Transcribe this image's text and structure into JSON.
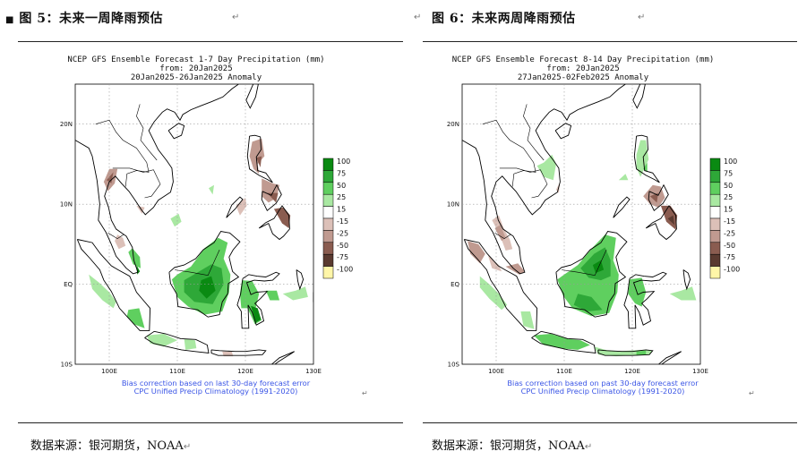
{
  "left": {
    "figure_title": "图 5：未来一周降雨预估",
    "source": "数据来源：银河期货，NOAA"
  },
  "right": {
    "figure_title": "图 6：未来两周降雨预估",
    "source": "数据来源：银河期货，NOAA"
  },
  "paragraph_mark": "↵",
  "bullet": "■",
  "colors": {
    "land_outline": "#000000",
    "grid": "#9a9a9a",
    "footnote": "#3a55e6",
    "legend_colors": [
      "#0a8a12",
      "#2ea838",
      "#5fcf5f",
      "#a9e8a2",
      "#ffffff",
      "#dcc0b8",
      "#c09a90",
      "#8a5c50",
      "#5a3a30",
      "#fff6a8"
    ]
  },
  "chart_data": [
    {
      "type": "heatmap",
      "title_lines": [
        "NCEP GFS Ensemble Forecast 1-7 Day Precipitation (mm)",
        "from: 20Jan2025",
        "20Jan2025-26Jan2025 Anomaly"
      ],
      "x_ticks": [
        "100E",
        "110E",
        "120E",
        "130E"
      ],
      "y_ticks": [
        "20N",
        "10N",
        "EQ",
        "10S"
      ],
      "xlim": [
        95,
        130
      ],
      "ylim": [
        -10,
        25
      ],
      "legend_labels": [
        "100",
        "75",
        "50",
        "25",
        "15",
        "-15",
        "-25",
        "-50",
        "-75",
        "-100"
      ],
      "footnote_lines": [
        "Bias correction based on last 30-day forecast error",
        "CPC Unified Precip Climatology (1991-2020)"
      ],
      "grid": true
    },
    {
      "type": "heatmap",
      "title_lines": [
        "NCEP GFS Ensemble Forecast 8-14 Day Precipitation (mm)",
        "from: 20Jan2025",
        "27Jan2025-02Feb2025 Anomaly"
      ],
      "x_ticks": [
        "100E",
        "110E",
        "120E",
        "130E"
      ],
      "y_ticks": [
        "20N",
        "10N",
        "EQ",
        "10S"
      ],
      "xlim": [
        95,
        130
      ],
      "ylim": [
        -10,
        25
      ],
      "legend_labels": [
        "100",
        "75",
        "50",
        "25",
        "15",
        "-15",
        "-25",
        "-50",
        "-75",
        "-100"
      ],
      "footnote_lines": [
        "Bias correction based on past 30-day forecast error",
        "CPC Unified Precip Climatology (1991-2020)"
      ],
      "grid": true
    }
  ]
}
